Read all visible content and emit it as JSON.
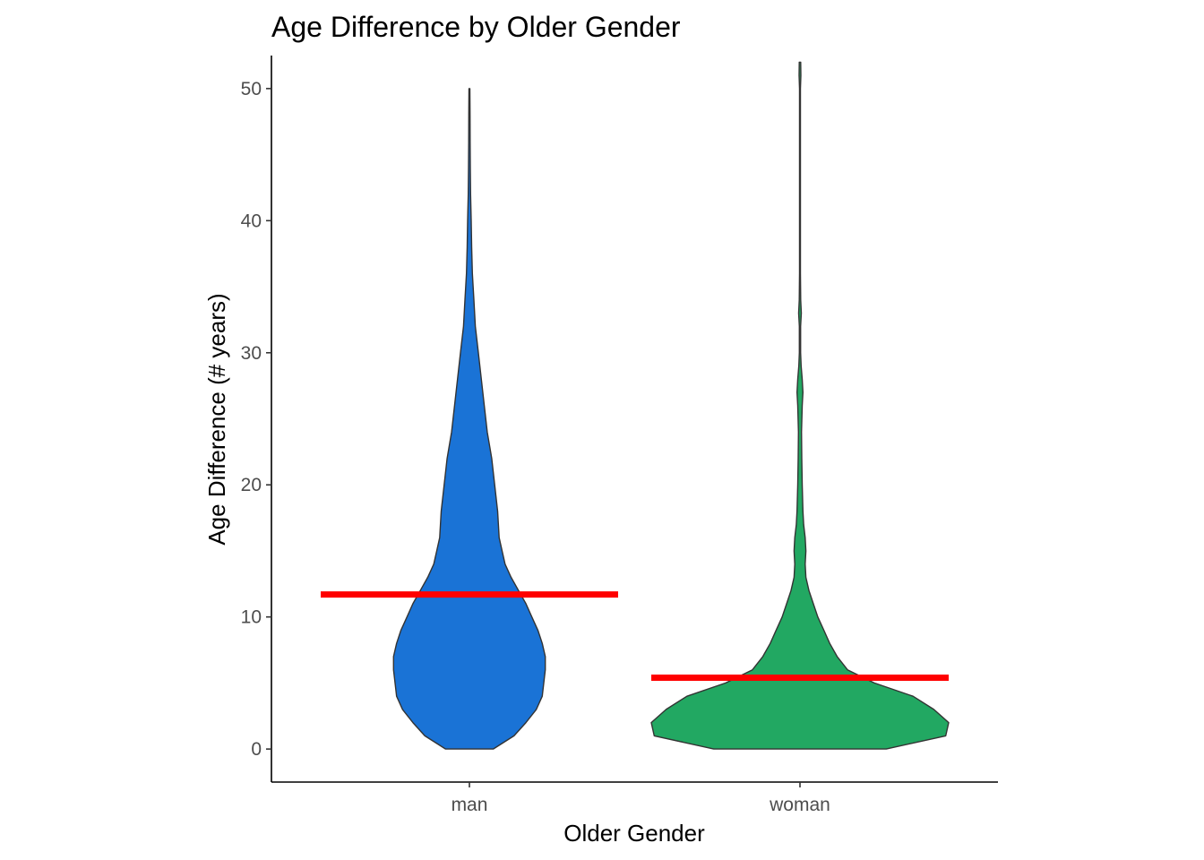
{
  "chart_data": {
    "type": "violin",
    "title": "Age Difference by Older Gender",
    "xlabel": "Older Gender",
    "ylabel": "Age Difference (# years)",
    "categories": [
      "man",
      "woman"
    ],
    "ylim": [
      -2.5,
      52.5
    ],
    "yticks": [
      0,
      10,
      20,
      30,
      40,
      50
    ],
    "grid": false,
    "legend": "none",
    "colors": {
      "man": "#1a73d6",
      "woman": "#22a862",
      "mean_line": "#ff0000",
      "outline": "#333333"
    },
    "means": {
      "man": 11.7,
      "woman": 5.4
    },
    "ranges": {
      "man": [
        0,
        50
      ],
      "woman": [
        0,
        52
      ]
    },
    "density_profiles": [
      {
        "name": "man",
        "points": [
          [
            0,
            0.16
          ],
          [
            1,
            0.3
          ],
          [
            2,
            0.38
          ],
          [
            3,
            0.45
          ],
          [
            4,
            0.49
          ],
          [
            5,
            0.5
          ],
          [
            6,
            0.51
          ],
          [
            7,
            0.51
          ],
          [
            8,
            0.49
          ],
          [
            9,
            0.46
          ],
          [
            10,
            0.42
          ],
          [
            11,
            0.38
          ],
          [
            12,
            0.33
          ],
          [
            13,
            0.28
          ],
          [
            14,
            0.24
          ],
          [
            15,
            0.22
          ],
          [
            16,
            0.2
          ],
          [
            18,
            0.19
          ],
          [
            20,
            0.17
          ],
          [
            22,
            0.15
          ],
          [
            24,
            0.12
          ],
          [
            26,
            0.1
          ],
          [
            28,
            0.08
          ],
          [
            30,
            0.06
          ],
          [
            32,
            0.04
          ],
          [
            34,
            0.03
          ],
          [
            36,
            0.02
          ],
          [
            38,
            0.015
          ],
          [
            40,
            0.012
          ],
          [
            42,
            0.008
          ],
          [
            44,
            0.006
          ],
          [
            46,
            0.005
          ],
          [
            48,
            0.004
          ],
          [
            50,
            0.003
          ]
        ]
      },
      {
        "name": "woman",
        "points": [
          [
            0,
            0.58
          ],
          [
            1,
            0.98
          ],
          [
            2,
            1.0
          ],
          [
            3,
            0.9
          ],
          [
            4,
            0.76
          ],
          [
            5,
            0.5
          ],
          [
            6,
            0.32
          ],
          [
            7,
            0.25
          ],
          [
            8,
            0.2
          ],
          [
            9,
            0.16
          ],
          [
            10,
            0.12
          ],
          [
            11,
            0.09
          ],
          [
            12,
            0.06
          ],
          [
            13,
            0.04
          ],
          [
            14,
            0.035
          ],
          [
            15,
            0.04
          ],
          [
            16,
            0.035
          ],
          [
            17,
            0.025
          ],
          [
            18,
            0.02
          ],
          [
            20,
            0.015
          ],
          [
            22,
            0.012
          ],
          [
            24,
            0.01
          ],
          [
            26,
            0.015
          ],
          [
            27,
            0.02
          ],
          [
            28,
            0.015
          ],
          [
            29,
            0.008
          ],
          [
            30,
            0.004
          ],
          [
            32,
            0.004
          ],
          [
            33,
            0.009
          ],
          [
            34,
            0.005
          ],
          [
            36,
            0.003
          ],
          [
            40,
            0.003
          ],
          [
            44,
            0.003
          ],
          [
            48,
            0.003
          ],
          [
            50,
            0.003
          ],
          [
            51,
            0.006
          ],
          [
            52,
            0.005
          ]
        ]
      }
    ]
  }
}
